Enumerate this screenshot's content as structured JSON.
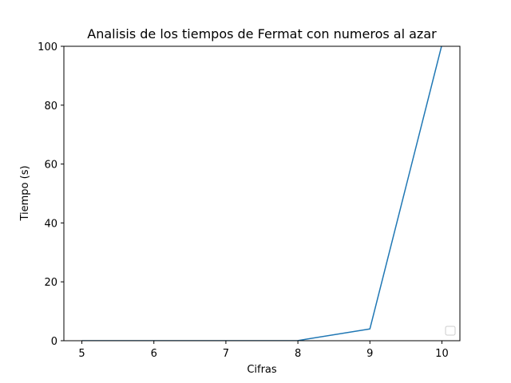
{
  "chart_data": {
    "type": "line",
    "title": "Analisis de los tiempos de Fermat con numeros al azar",
    "xlabel": "Cifras",
    "ylabel": "Tiempo (s)",
    "x": [
      5,
      6,
      7,
      8,
      9,
      10
    ],
    "series": [
      {
        "values": [
          0.0,
          0.0,
          0.0,
          0.05,
          4.0,
          100.5
        ],
        "color": "#1f77b4"
      }
    ],
    "xlim": [
      4.75,
      10.25
    ],
    "ylim": [
      0,
      100
    ],
    "xticks": [
      "5",
      "6",
      "7",
      "8",
      "9",
      "10"
    ],
    "yticks": [
      "0",
      "20",
      "40",
      "60",
      "80",
      "100"
    ],
    "grid": false,
    "legend": {
      "placement": "lower-right",
      "entries": []
    }
  }
}
